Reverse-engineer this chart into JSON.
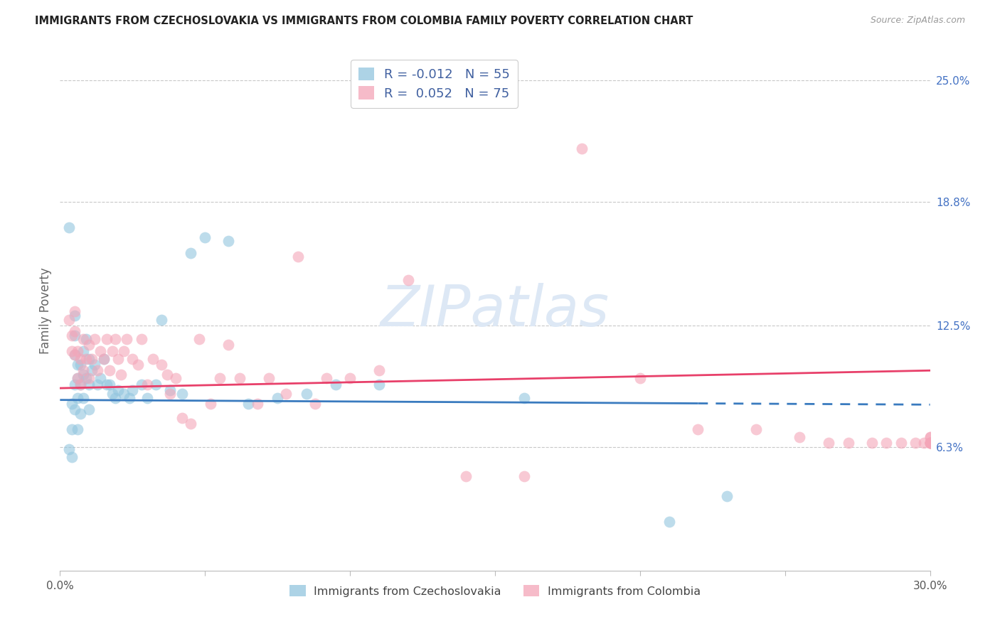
{
  "title": "IMMIGRANTS FROM CZECHOSLOVAKIA VS IMMIGRANTS FROM COLOMBIA FAMILY POVERTY CORRELATION CHART",
  "source": "Source: ZipAtlas.com",
  "ylabel": "Family Poverty",
  "xlim": [
    0.0,
    0.3
  ],
  "ylim": [
    0.0,
    0.265
  ],
  "yticks": [
    0.063,
    0.125,
    0.188,
    0.25
  ],
  "ytick_labels": [
    "6.3%",
    "12.5%",
    "18.8%",
    "25.0%"
  ],
  "xticks": [
    0.0,
    0.05,
    0.1,
    0.15,
    0.2,
    0.25,
    0.3
  ],
  "legend_labels": [
    "Immigrants from Czechoslovakia",
    "Immigrants from Colombia"
  ],
  "series1_color": "#92c5de",
  "series2_color": "#f4a5b8",
  "line1_color": "#3a7bbf",
  "line2_color": "#e8406a",
  "R1": -0.012,
  "N1": 55,
  "R2": 0.052,
  "N2": 75,
  "watermark_text": "ZIPatlas",
  "line1_solid_end": 0.22,
  "line1_intercept": 0.087,
  "line1_slope": -0.008,
  "line2_intercept": 0.093,
  "line2_slope": 0.03,
  "series1_x": [
    0.003,
    0.003,
    0.004,
    0.004,
    0.004,
    0.005,
    0.005,
    0.005,
    0.005,
    0.005,
    0.006,
    0.006,
    0.006,
    0.006,
    0.007,
    0.007,
    0.007,
    0.008,
    0.008,
    0.008,
    0.009,
    0.009,
    0.01,
    0.01,
    0.01,
    0.011,
    0.012,
    0.013,
    0.014,
    0.015,
    0.016,
    0.017,
    0.018,
    0.019,
    0.02,
    0.022,
    0.024,
    0.025,
    0.028,
    0.03,
    0.033,
    0.035,
    0.038,
    0.042,
    0.045,
    0.05,
    0.058,
    0.065,
    0.075,
    0.085,
    0.095,
    0.11,
    0.16,
    0.21,
    0.23
  ],
  "series1_y": [
    0.175,
    0.062,
    0.058,
    0.072,
    0.085,
    0.13,
    0.12,
    0.11,
    0.095,
    0.082,
    0.105,
    0.098,
    0.088,
    0.072,
    0.105,
    0.095,
    0.08,
    0.112,
    0.1,
    0.088,
    0.118,
    0.098,
    0.108,
    0.095,
    0.082,
    0.102,
    0.105,
    0.095,
    0.098,
    0.108,
    0.095,
    0.095,
    0.09,
    0.088,
    0.092,
    0.09,
    0.088,
    0.092,
    0.095,
    0.088,
    0.095,
    0.128,
    0.092,
    0.09,
    0.162,
    0.17,
    0.168,
    0.085,
    0.088,
    0.09,
    0.095,
    0.095,
    0.088,
    0.025,
    0.038
  ],
  "series2_x": [
    0.003,
    0.004,
    0.004,
    0.005,
    0.005,
    0.005,
    0.006,
    0.006,
    0.007,
    0.007,
    0.008,
    0.008,
    0.009,
    0.01,
    0.01,
    0.011,
    0.012,
    0.013,
    0.014,
    0.015,
    0.016,
    0.017,
    0.018,
    0.019,
    0.02,
    0.021,
    0.022,
    0.023,
    0.025,
    0.027,
    0.028,
    0.03,
    0.032,
    0.035,
    0.037,
    0.038,
    0.04,
    0.042,
    0.045,
    0.048,
    0.052,
    0.055,
    0.058,
    0.062,
    0.068,
    0.072,
    0.078,
    0.082,
    0.088,
    0.092,
    0.1,
    0.11,
    0.12,
    0.14,
    0.16,
    0.18,
    0.2,
    0.22,
    0.24,
    0.255,
    0.265,
    0.272,
    0.28,
    0.285,
    0.29,
    0.295,
    0.298,
    0.3,
    0.3,
    0.3,
    0.3,
    0.3,
    0.3,
    0.3,
    0.3
  ],
  "series2_y": [
    0.128,
    0.12,
    0.112,
    0.132,
    0.122,
    0.11,
    0.112,
    0.098,
    0.108,
    0.095,
    0.118,
    0.102,
    0.108,
    0.115,
    0.098,
    0.108,
    0.118,
    0.102,
    0.112,
    0.108,
    0.118,
    0.102,
    0.112,
    0.118,
    0.108,
    0.1,
    0.112,
    0.118,
    0.108,
    0.105,
    0.118,
    0.095,
    0.108,
    0.105,
    0.1,
    0.09,
    0.098,
    0.078,
    0.075,
    0.118,
    0.085,
    0.098,
    0.115,
    0.098,
    0.085,
    0.098,
    0.09,
    0.16,
    0.085,
    0.098,
    0.098,
    0.102,
    0.148,
    0.048,
    0.048,
    0.215,
    0.098,
    0.072,
    0.072,
    0.068,
    0.065,
    0.065,
    0.065,
    0.065,
    0.065,
    0.065,
    0.065,
    0.065,
    0.068,
    0.065,
    0.065,
    0.065,
    0.068,
    0.065,
    0.065
  ]
}
